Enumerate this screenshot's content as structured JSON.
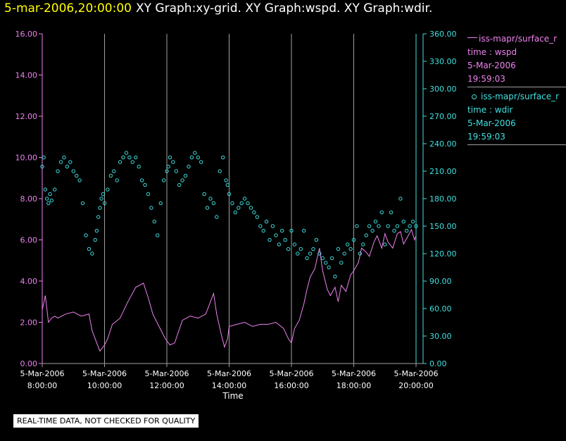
{
  "header": {
    "timestamp": "5-mar-2006,20:00:00",
    "titles": "XY Graph:xy-grid.  XY Graph:wspd.  XY Graph:wdir."
  },
  "colors": {
    "background": "#000000",
    "wspd": "#ee82ee",
    "wdir": "#40e0e0",
    "grid": "#a0a0a0",
    "timestamp": "#ffff00",
    "text": "#ffffff"
  },
  "legend": [
    {
      "name": "iss-mapr/surface_r",
      "marker": "line-icon",
      "label": "time : wspd",
      "date": "5-Mar-2006",
      "time": "19:59:03"
    },
    {
      "name": "iss-mapr/surface_r",
      "marker": "circle-icon",
      "label": "time : wdir",
      "date": "5-Mar-2006",
      "time": "19:59:03"
    }
  ],
  "disclaimer": "REAL-TIME DATA, NOT CHECKED FOR QUALITY",
  "chart_data": {
    "type": "line",
    "xlabel": "Time",
    "x_ticks": [
      [
        "5-Mar-2006",
        "8:00:00"
      ],
      [
        "5-Mar-2006",
        "10:00:00"
      ],
      [
        "5-Mar-2006",
        "12:00:00"
      ],
      [
        "5-Mar-2006",
        "14:00:00"
      ],
      [
        "5-Mar-2006",
        "16:00:00"
      ],
      [
        "5-Mar-2006",
        "18:00:00"
      ],
      [
        "5-Mar-2006",
        "20:00:00"
      ]
    ],
    "xlim": [
      8.0,
      20.0
    ],
    "y_left": {
      "lim": [
        0,
        16
      ],
      "ticks": [
        "0.00",
        "2.00",
        "4.00",
        "6.00",
        "8.00",
        "10.00",
        "12.00",
        "14.00",
        "16.00"
      ]
    },
    "y_right": {
      "lim": [
        0,
        360
      ],
      "ticks": [
        "0.00",
        "30.00",
        "60.00",
        "90.00",
        "120.00",
        "150.00",
        "180.00",
        "210.00",
        "240.00",
        "270.00",
        "300.00",
        "330.00",
        "360.00"
      ]
    },
    "grid": "vertical",
    "series": [
      {
        "name": "iss-mapr/surface_r",
        "axis": "left",
        "style": "line",
        "x": [
          8.0,
          8.1,
          8.2,
          8.3,
          8.4,
          8.5,
          8.75,
          9.0,
          9.25,
          9.5,
          9.6,
          9.75,
          9.85,
          10.0,
          10.1,
          10.25,
          10.5,
          10.75,
          11.0,
          11.25,
          11.4,
          11.55,
          11.75,
          11.95,
          12.1,
          12.25,
          12.5,
          12.75,
          13.0,
          13.25,
          13.5,
          13.6,
          13.75,
          13.85,
          13.95,
          14.0,
          14.25,
          14.5,
          14.75,
          15.0,
          15.25,
          15.5,
          15.75,
          15.9,
          16.0,
          16.1,
          16.25,
          16.4,
          16.5,
          16.6,
          16.75,
          16.9,
          17.0,
          17.15,
          17.25,
          17.4,
          17.5,
          17.6,
          17.75,
          17.9,
          18.0,
          18.15,
          18.25,
          18.4,
          18.5,
          18.65,
          18.75,
          18.9,
          19.0,
          19.1,
          19.25,
          19.4,
          19.5,
          19.6,
          19.75,
          19.85,
          19.95,
          20.0
        ],
        "values": [
          2.6,
          3.3,
          2.0,
          2.2,
          2.3,
          2.2,
          2.4,
          2.5,
          2.3,
          2.4,
          1.6,
          1.0,
          0.6,
          0.9,
          1.2,
          1.9,
          2.2,
          3.0,
          3.7,
          3.9,
          3.2,
          2.4,
          1.8,
          1.2,
          0.9,
          1.0,
          2.1,
          2.3,
          2.2,
          2.4,
          3.4,
          2.4,
          1.4,
          0.8,
          1.2,
          1.8,
          1.9,
          2.0,
          1.8,
          1.9,
          1.9,
          2.0,
          1.7,
          1.2,
          1.0,
          1.7,
          2.1,
          2.9,
          3.6,
          4.2,
          4.6,
          5.6,
          4.5,
          3.6,
          3.3,
          3.7,
          3.0,
          3.8,
          3.5,
          4.3,
          4.5,
          4.9,
          5.6,
          5.4,
          5.2,
          5.9,
          6.2,
          5.6,
          6.3,
          5.9,
          5.6,
          6.3,
          6.4,
          5.8,
          6.2,
          6.5,
          6.0,
          6.2
        ]
      },
      {
        "name": "iss-mapr/surface_r",
        "axis": "right",
        "style": "scatter",
        "x": [
          8.0,
          8.05,
          8.1,
          8.15,
          8.2,
          8.25,
          8.3,
          8.4,
          8.5,
          8.6,
          8.7,
          8.8,
          8.9,
          9.0,
          9.1,
          9.2,
          9.3,
          9.4,
          9.5,
          9.6,
          9.7,
          9.75,
          9.8,
          9.85,
          9.9,
          9.95,
          10.0,
          10.1,
          10.2,
          10.3,
          10.4,
          10.5,
          10.6,
          10.7,
          10.8,
          10.9,
          11.0,
          11.1,
          11.2,
          11.3,
          11.4,
          11.5,
          11.6,
          11.7,
          11.8,
          11.9,
          12.0,
          12.05,
          12.1,
          12.2,
          12.3,
          12.4,
          12.5,
          12.6,
          12.7,
          12.8,
          12.9,
          13.0,
          13.1,
          13.2,
          13.3,
          13.4,
          13.5,
          13.6,
          13.7,
          13.8,
          13.9,
          13.95,
          14.0,
          14.1,
          14.2,
          14.3,
          14.4,
          14.5,
          14.6,
          14.7,
          14.8,
          14.9,
          15.0,
          15.1,
          15.2,
          15.3,
          15.4,
          15.5,
          15.6,
          15.7,
          15.8,
          15.9,
          16.0,
          16.1,
          16.2,
          16.3,
          16.4,
          16.5,
          16.6,
          16.7,
          16.8,
          16.9,
          17.0,
          17.1,
          17.2,
          17.3,
          17.4,
          17.5,
          17.6,
          17.7,
          17.8,
          17.9,
          18.0,
          18.1,
          18.2,
          18.3,
          18.4,
          18.5,
          18.6,
          18.7,
          18.8,
          18.9,
          19.0,
          19.1,
          19.2,
          19.3,
          19.4,
          19.5,
          19.6,
          19.7,
          19.8,
          19.9,
          20.0
        ],
        "values": [
          215,
          225,
          190,
          180,
          175,
          185,
          178,
          190,
          210,
          220,
          225,
          215,
          220,
          210,
          205,
          200,
          175,
          140,
          125,
          120,
          135,
          145,
          160,
          170,
          180,
          185,
          175,
          190,
          205,
          210,
          200,
          220,
          225,
          230,
          225,
          220,
          225,
          215,
          200,
          195,
          185,
          170,
          155,
          140,
          175,
          200,
          210,
          215,
          225,
          220,
          210,
          195,
          200,
          205,
          215,
          225,
          230,
          225,
          220,
          185,
          170,
          180,
          175,
          160,
          210,
          225,
          200,
          195,
          185,
          175,
          165,
          170,
          175,
          180,
          175,
          170,
          165,
          160,
          150,
          145,
          155,
          135,
          150,
          140,
          130,
          145,
          135,
          125,
          145,
          130,
          120,
          125,
          145,
          115,
          120,
          125,
          135,
          120,
          115,
          110,
          105,
          115,
          95,
          125,
          110,
          120,
          130,
          125,
          135,
          150,
          120,
          130,
          140,
          150,
          145,
          155,
          150,
          165,
          130,
          150,
          165,
          145,
          150,
          180,
          155,
          145,
          150,
          155,
          150
        ]
      }
    ]
  }
}
